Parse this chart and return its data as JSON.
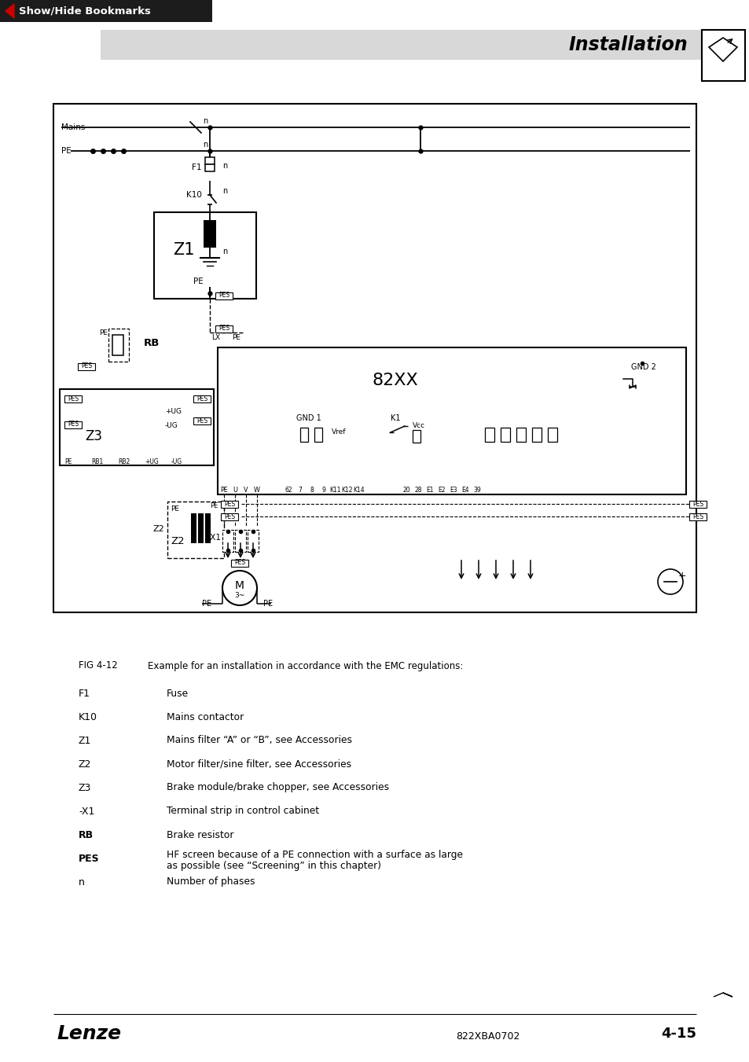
{
  "page_bg": "#ffffff",
  "header_bar_color": "#1c1c1c",
  "header_text": "Show/Hide Bookmarks",
  "header_arrow_color": "#cc0000",
  "title_band_color": "#d8d8d8",
  "title_text": "Installation",
  "fig_label": "FIG 4-12",
  "fig_caption": "Example for an installation in accordance with the EMC regulations:",
  "legend_items": [
    [
      "F1",
      "Fuse"
    ],
    [
      "K10",
      "Mains contactor"
    ],
    [
      "Z1",
      "Mains filter “A” or “B”, see Accessories"
    ],
    [
      "Z2",
      "Motor filter/sine filter, see Accessories"
    ],
    [
      "Z3",
      "Brake module/brake chopper, see Accessories"
    ],
    [
      "-X1",
      "Terminal strip in control cabinet"
    ],
    [
      "RB",
      "Brake resistor"
    ],
    [
      "PES",
      "HF screen because of a PE connection with a surface as large as possible (see “Screening” in this chapter)"
    ],
    [
      "n",
      "Number of phases"
    ]
  ],
  "footer_left": "Lenze",
  "footer_center": "822XBA0702",
  "footer_right": "4-15"
}
